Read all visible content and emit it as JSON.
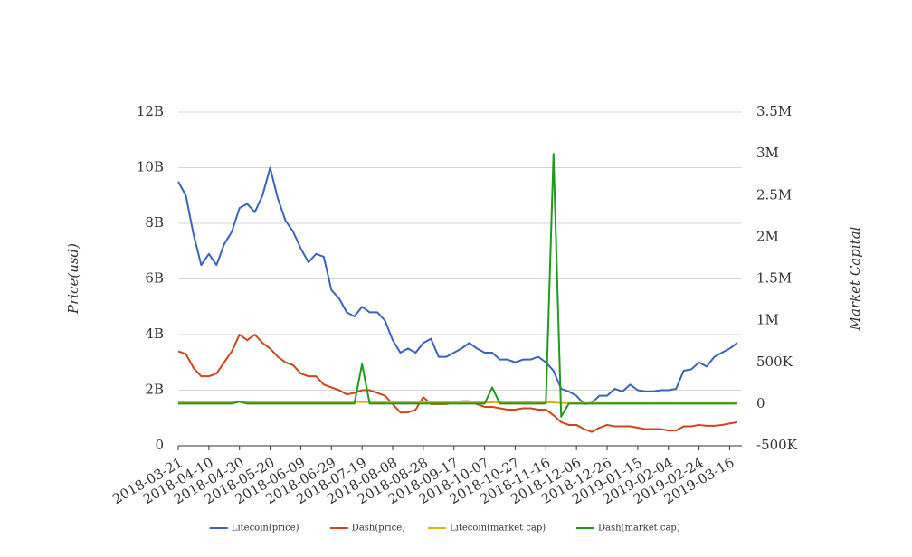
{
  "chart_data": {
    "type": "line",
    "y_label": "Price(usd)",
    "y2_label": "Market Capital",
    "x": [
      "2018-03-21",
      "2018-03-26",
      "2018-03-31",
      "2018-04-05",
      "2018-04-10",
      "2018-04-15",
      "2018-04-20",
      "2018-04-25",
      "2018-04-30",
      "2018-05-05",
      "2018-05-10",
      "2018-05-15",
      "2018-05-20",
      "2018-05-25",
      "2018-05-30",
      "2018-06-04",
      "2018-06-09",
      "2018-06-14",
      "2018-06-19",
      "2018-06-24",
      "2018-06-29",
      "2018-07-04",
      "2018-07-09",
      "2018-07-14",
      "2018-07-19",
      "2018-07-24",
      "2018-07-29",
      "2018-08-03",
      "2018-08-08",
      "2018-08-13",
      "2018-08-18",
      "2018-08-23",
      "2018-08-28",
      "2018-09-02",
      "2018-09-07",
      "2018-09-12",
      "2018-09-17",
      "2018-09-22",
      "2018-09-27",
      "2018-10-02",
      "2018-10-07",
      "2018-10-12",
      "2018-10-17",
      "2018-10-22",
      "2018-10-27",
      "2018-11-01",
      "2018-11-06",
      "2018-11-11",
      "2018-11-16",
      "2018-11-21",
      "2018-11-26",
      "2018-12-01",
      "2018-12-06",
      "2018-12-11",
      "2018-12-16",
      "2018-12-21",
      "2018-12-26",
      "2018-12-31",
      "2019-01-05",
      "2019-01-10",
      "2019-01-15",
      "2019-01-20",
      "2019-01-25",
      "2019-01-30",
      "2019-02-04",
      "2019-02-09",
      "2019-02-14",
      "2019-02-19",
      "2019-02-24",
      "2019-03-01",
      "2019-03-06",
      "2019-03-11",
      "2019-03-16",
      "2019-03-21"
    ],
    "xlim": [
      "2018-03-21",
      "2019-03-24"
    ],
    "xticks": [
      "2018-03-21",
      "2018-04-10",
      "2018-04-30",
      "2018-05-20",
      "2018-06-09",
      "2018-06-29",
      "2018-07-19",
      "2018-08-08",
      "2018-08-28",
      "2018-09-17",
      "2018-10-07",
      "2018-10-27",
      "2018-11-16",
      "2018-12-06",
      "2018-12-26",
      "2019-01-15",
      "2019-02-04",
      "2019-02-24",
      "2019-03-16"
    ],
    "ylim": [
      0,
      12000000000.0
    ],
    "yticks": [
      0,
      {
        "value": 2000000000.0,
        "label": "2B"
      },
      {
        "value": 4000000000.0,
        "label": "4B"
      },
      {
        "value": 6000000000.0,
        "label": "6B"
      },
      {
        "value": 8000000000.0,
        "label": "8B"
      },
      {
        "value": 10000000000.0,
        "label": "10B"
      },
      {
        "value": 12000000000.0,
        "label": "12B"
      }
    ],
    "y2lim": [
      -500000,
      3500000
    ],
    "y2ticks": [
      {
        "value": -500000,
        "label": "-500K"
      },
      0,
      {
        "value": 500000,
        "label": "500K"
      },
      {
        "value": 1000000,
        "label": "1M"
      },
      {
        "value": 1500000,
        "label": "1.5M"
      },
      {
        "value": 2000000,
        "label": "2M"
      },
      {
        "value": 2500000,
        "label": "2.5M"
      },
      {
        "value": 3000000,
        "label": "3M"
      },
      {
        "value": 3500000,
        "label": "3.5M"
      }
    ],
    "grid": true,
    "legend": "bottom",
    "series": [
      {
        "name": "Litecoin(price)",
        "color": "#3a62c0",
        "values": [
          9500000000.0,
          9000000000.0,
          7600000000.0,
          6500000000.0,
          6900000000.0,
          6500000000.0,
          7250000000.0,
          7700000000.0,
          8550000000.0,
          8700000000.0,
          8400000000.0,
          9000000000.0,
          10000000000.0,
          8900000000.0,
          8100000000.0,
          7700000000.0,
          7100000000.0,
          6600000000.0,
          6900000000.0,
          6800000000.0,
          5600000000.0,
          5300000000.0,
          4800000000.0,
          4650000000.0,
          5000000000.0,
          4800000000.0,
          4800000000.0,
          4500000000.0,
          3800000000.0,
          3350000000.0,
          3500000000.0,
          3350000000.0,
          3700000000.0,
          3850000000.0,
          3200000000.0,
          3200000000.0,
          3350000000.0,
          3500000000.0,
          3700000000.0,
          3500000000.0,
          3350000000.0,
          3350000000.0,
          3100000000.0,
          3100000000.0,
          3000000000.0,
          3100000000.0,
          3100000000.0,
          3200000000.0,
          3000000000.0,
          2700000000.0,
          2050000000.0,
          1950000000.0,
          1800000000.0,
          1500000000.0,
          1550000000.0,
          1800000000.0,
          1800000000.0,
          2050000000.0,
          1950000000.0,
          2200000000.0,
          2000000000.0,
          1950000000.0,
          1950000000.0,
          2000000000.0,
          2000000000.0,
          2050000000.0,
          2700000000.0,
          2750000000.0,
          3000000000.0,
          2850000000.0,
          3200000000.0,
          3350000000.0,
          3500000000.0,
          3700000000.0
        ]
      },
      {
        "name": "Dash(price)",
        "color": "#d0441c",
        "values": [
          3400000000.0,
          3300000000.0,
          2800000000.0,
          2500000000.0,
          2500000000.0,
          2600000000.0,
          3000000000.0,
          3400000000.0,
          4000000000.0,
          3800000000.0,
          4000000000.0,
          3700000000.0,
          3500000000.0,
          3200000000.0,
          3000000000.0,
          2900000000.0,
          2600000000.0,
          2500000000.0,
          2500000000.0,
          2200000000.0,
          2100000000.0,
          2000000000.0,
          1850000000.0,
          1900000000.0,
          2000000000.0,
          2000000000.0,
          1900000000.0,
          1800000000.0,
          1500000000.0,
          1200000000.0,
          1200000000.0,
          1300000000.0,
          1750000000.0,
          1500000000.0,
          1500000000.0,
          1500000000.0,
          1550000000.0,
          1600000000.0,
          1600000000.0,
          1500000000.0,
          1400000000.0,
          1400000000.0,
          1350000000.0,
          1300000000.0,
          1300000000.0,
          1350000000.0,
          1350000000.0,
          1300000000.0,
          1300000000.0,
          1100000000.0,
          850000000.0,
          750000000.0,
          750000000.0,
          600000000.0,
          500000000.0,
          650000000.0,
          750000000.0,
          700000000.0,
          700000000.0,
          700000000.0,
          650000000.0,
          600000000.0,
          600000000.0,
          600000000.0,
          550000000.0,
          550000000.0,
          700000000.0,
          700000000.0,
          750000000.0,
          720000000.0,
          720000000.0,
          750000000.0,
          800000000.0,
          850000000.0
        ]
      },
      {
        "name": "Litecoin(market cap)",
        "color": "#e5b000",
        "axis": "y2",
        "values": [
          25000,
          25000,
          25000,
          25000,
          25000,
          25000,
          25000,
          25000,
          25000,
          25000,
          25000,
          25000,
          25000,
          25000,
          25000,
          25000,
          25000,
          25000,
          25000,
          25000,
          25000,
          25000,
          25000,
          25000,
          25000,
          25000,
          25000,
          25000,
          25000,
          25000,
          20000,
          20000,
          20000,
          20000,
          20000,
          20000,
          20000,
          20000,
          20000,
          20000,
          20000,
          20000,
          20000,
          20000,
          20000,
          20000,
          20000,
          20000,
          20000,
          20000,
          12000,
          12000,
          12000,
          12000,
          12000,
          12000,
          12000,
          12000,
          12000,
          12000,
          12000,
          12000,
          12000,
          12000,
          12000,
          12000,
          12000,
          12000,
          12000,
          12000,
          12000,
          12000,
          12000,
          12000
        ]
      },
      {
        "name": "Dash(market cap)",
        "color": "#1f9a1f",
        "axis": "y2",
        "values": [
          5000,
          5000,
          5000,
          5000,
          5000,
          5000,
          5000,
          5000,
          30000,
          5000,
          5000,
          5000,
          5000,
          5000,
          5000,
          5000,
          5000,
          5000,
          5000,
          5000,
          5000,
          5000,
          5000,
          5000,
          480000,
          5000,
          5000,
          5000,
          5000,
          5000,
          5000,
          5000,
          5000,
          5000,
          5000,
          5000,
          5000,
          5000,
          5000,
          5000,
          5000,
          200000,
          5000,
          5000,
          5000,
          5000,
          5000,
          5000,
          5000,
          3000000,
          -150000,
          5000,
          5000,
          5000,
          5000,
          5000,
          5000,
          5000,
          5000,
          5000,
          5000,
          5000,
          5000,
          5000,
          5000,
          5000,
          5000,
          5000,
          5000,
          5000,
          5000,
          5000,
          5000,
          5000
        ]
      }
    ]
  }
}
